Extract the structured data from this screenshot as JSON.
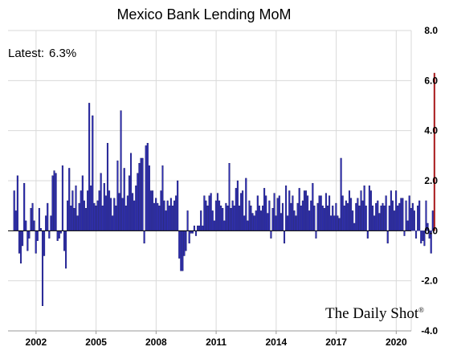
{
  "chart_data": {
    "type": "bar",
    "title": "Mexico Bank Lending MoM",
    "annotation_label": "Latest:",
    "annotation_value": "6.3%",
    "watermark": "The Daily Shot",
    "watermark_mark": "®",
    "ylim": [
      -4,
      8
    ],
    "y_ticks": [
      "8.0",
      "6.0",
      "4.0",
      "2.0",
      "0.0",
      "-2.0",
      "-4.0"
    ],
    "y_tick_values": [
      8,
      6,
      4,
      2,
      0,
      -2,
      -4
    ],
    "x_ticks": [
      "2002",
      "2005",
      "2008",
      "2011",
      "2014",
      "2017",
      "2020"
    ],
    "x_tick_positions": [
      2002,
      2005,
      2008,
      2011,
      2014,
      2017,
      2020
    ],
    "x_range": [
      2000.6,
      2020.75
    ],
    "start": 2000.917,
    "step": 0.08333,
    "grid": true,
    "y_axis_side": "right",
    "bar_color": "#2e2eb8",
    "bar_edge": "#0a0a50",
    "highlight_color": "#c0282c",
    "values": [
      1.6,
      0.8,
      2.2,
      -0.9,
      -1.3,
      -0.6,
      1.9,
      0.4,
      -0.8,
      -0.3,
      0.9,
      1.1,
      0.4,
      -0.9,
      -0.4,
      0.9,
      0.1,
      -3.0,
      -1.0,
      0.6,
      1.1,
      -0.3,
      0.6,
      2.2,
      2.4,
      2.3,
      -0.4,
      -0.3,
      -0.1,
      2.6,
      -0.8,
      -1.5,
      1.2,
      2.5,
      1.0,
      1.6,
      0.9,
      1.8,
      0.6,
      1.1,
      1.6,
      2.2,
      1.2,
      0.9,
      1.6,
      5.1,
      1.8,
      4.6,
      1.1,
      1.0,
      1.2,
      1.6,
      2.3,
      1.0,
      1.9,
      1.4,
      3.5,
      1.6,
      1.3,
      0.6,
      1.3,
      1.0,
      2.8,
      1.5,
      4.8,
      1.3,
      2.5,
      1.0,
      1.4,
      2.2,
      3.1,
      1.5,
      1.2,
      1.8,
      2.3,
      2.7,
      2.9,
      2.9,
      -0.5,
      3.4,
      3.5,
      2.6,
      1.6,
      1.6,
      1.1,
      1.3,
      1.1,
      1.0,
      1.6,
      2.6,
      1.2,
      0.8,
      1.2,
      1.0,
      1.3,
      1.0,
      1.2,
      1.4,
      2.0,
      -1.1,
      -1.6,
      -1.6,
      -1.0,
      -0.8,
      0.8,
      -0.5,
      -0.1,
      -0.1,
      0.2,
      -0.2,
      0.2,
      0.2,
      0.8,
      0.2,
      1.4,
      1.2,
      1.0,
      1.4,
      1.5,
      0.8,
      0.4,
      1.2,
      1.5,
      1.2,
      1.0,
      0.9,
      0.4,
      1.1,
      1.0,
      2.7,
      0.9,
      1.2,
      1.0,
      1.7,
      2.0,
      1.0,
      1.5,
      1.6,
      0.6,
      2.1,
      0.4,
      1.2,
      1.0,
      0.7,
      0.6,
      0.8,
      1.4,
      1.0,
      0.8,
      1.0,
      1.7,
      1.4,
      0.7,
      1.2,
      -0.3,
      0.9,
      1.5,
      0.6,
      1.3,
      1.4,
      0.7,
      1.1,
      -0.5,
      1.8,
      0.6,
      1.6,
      1.1,
      1.4,
      0.8,
      0.6,
      1.1,
      1.7,
      1.0,
      1.2,
      1.6,
      1.6,
      1.4,
      0.8,
      1.2,
      1.9,
      1.0,
      -0.3,
      1.1,
      1.4,
      1.4,
      1.0,
      0.9,
      1.5,
      1.0,
      1.4,
      0.6,
      1.0,
      0.6,
      1.1,
      0.6,
      0.5,
      2.9,
      1.4,
      1.0,
      1.2,
      1.1,
      1.6,
      1.3,
      0.8,
      0.3,
      1.1,
      1.3,
      1.0,
      1.6,
      1.2,
      1.8,
      1.0,
      -0.3,
      1.8,
      1.6,
      1.0,
      0.6,
      1.1,
      1.2,
      0.7,
      1.0,
      1.1,
      1.0,
      1.4,
      -0.5,
      1.0,
      1.6,
      1.2,
      0.8,
      1.6,
      1.0,
      1.1,
      1.3,
      1.3,
      -0.2,
      1.2,
      0.4,
      1.4,
      0.9,
      1.1,
      0.8,
      -0.3,
      1.0,
      1.2,
      -0.5,
      -0.4,
      -0.6,
      1.2,
      0.3,
      -0.3,
      -0.9,
      0.8,
      6.3
    ],
    "note": ""
  }
}
